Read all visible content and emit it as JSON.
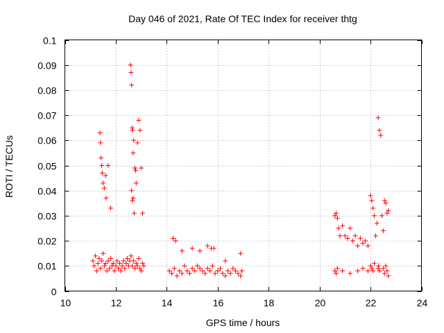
{
  "chart_data": {
    "type": "scatter",
    "title": "Day 046 of 2021, Rate Of TEC Index for receiver thtg",
    "xlabel": "GPS time / hours",
    "ylabel": "ROTI / TECUs",
    "xlim": [
      10,
      24
    ],
    "ylim": [
      0,
      0.1
    ],
    "xticks": [
      10,
      12,
      14,
      16,
      18,
      20,
      22,
      24
    ],
    "yticks": [
      0,
      0.01,
      0.02,
      0.03,
      0.04,
      0.05,
      0.06,
      0.07,
      0.08,
      0.09,
      0.1
    ],
    "grid": true,
    "marker": "+",
    "color": "#ff0000",
    "series": [
      {
        "name": "ROTI",
        "x": [
          11.1,
          11.15,
          11.2,
          11.25,
          11.3,
          11.35,
          11.4,
          11.45,
          11.5,
          11.55,
          11.6,
          11.65,
          11.7,
          11.75,
          11.8,
          11.85,
          11.9,
          11.95,
          12.0,
          12.05,
          12.1,
          12.15,
          12.2,
          12.25,
          12.3,
          12.35,
          12.4,
          12.45,
          12.5,
          12.55,
          12.6,
          12.65,
          12.7,
          12.75,
          12.8,
          12.85,
          12.9,
          12.95,
          13.0,
          13.05,
          13.1,
          11.38,
          11.4,
          11.42,
          11.45,
          11.47,
          11.5,
          11.55,
          11.6,
          11.62,
          11.7,
          11.8,
          12.58,
          12.6,
          12.62,
          12.64,
          12.66,
          12.68,
          12.7,
          12.75,
          12.78,
          12.8,
          12.85,
          12.9,
          12.95,
          13.0,
          13.05,
          12.62,
          12.65,
          12.68,
          12.72,
          14.1,
          14.2,
          14.3,
          14.4,
          14.5,
          14.6,
          14.7,
          14.8,
          14.9,
          15.0,
          15.1,
          15.2,
          15.3,
          15.4,
          15.5,
          15.6,
          15.7,
          15.8,
          15.9,
          16.0,
          16.1,
          16.2,
          16.3,
          16.4,
          16.5,
          16.6,
          16.7,
          16.8,
          16.9,
          16.95,
          14.25,
          14.35,
          14.6,
          15.0,
          15.3,
          15.6,
          15.75,
          15.85,
          16.3,
          16.9,
          20.6,
          20.65,
          20.7,
          20.75,
          20.8,
          20.9,
          21.0,
          21.1,
          21.2,
          21.3,
          21.4,
          21.5,
          21.6,
          21.7,
          21.8,
          21.9,
          22.0,
          22.05,
          22.1,
          22.15,
          22.2,
          22.25,
          22.3,
          22.35,
          22.4,
          22.45,
          22.5,
          22.55,
          22.6,
          22.65,
          22.7,
          20.6,
          20.65,
          20.7,
          20.9,
          21.2,
          21.5,
          21.7,
          21.9,
          22.0,
          22.05,
          22.1,
          22.15,
          22.3,
          22.32,
          22.35,
          22.5,
          22.55,
          22.6,
          22.65,
          22.7
        ],
        "y": [
          0.012,
          0.01,
          0.014,
          0.008,
          0.011,
          0.013,
          0.009,
          0.012,
          0.015,
          0.01,
          0.011,
          0.008,
          0.012,
          0.009,
          0.013,
          0.01,
          0.011,
          0.008,
          0.01,
          0.012,
          0.009,
          0.011,
          0.008,
          0.01,
          0.012,
          0.009,
          0.011,
          0.013,
          0.01,
          0.012,
          0.014,
          0.01,
          0.012,
          0.009,
          0.011,
          0.01,
          0.013,
          0.009,
          0.008,
          0.011,
          0.01,
          0.063,
          0.059,
          0.053,
          0.05,
          0.047,
          0.043,
          0.041,
          0.046,
          0.037,
          0.05,
          0.033,
          0.09,
          0.087,
          0.082,
          0.065,
          0.064,
          0.055,
          0.06,
          0.049,
          0.048,
          0.043,
          0.059,
          0.068,
          0.064,
          0.049,
          0.031,
          0.04,
          0.036,
          0.037,
          0.031,
          0.008,
          0.007,
          0.009,
          0.006,
          0.008,
          0.007,
          0.01,
          0.008,
          0.007,
          0.009,
          0.008,
          0.01,
          0.009,
          0.008,
          0.007,
          0.009,
          0.008,
          0.01,
          0.007,
          0.008,
          0.009,
          0.007,
          0.006,
          0.008,
          0.007,
          0.009,
          0.008,
          0.007,
          0.006,
          0.008,
          0.021,
          0.02,
          0.016,
          0.017,
          0.016,
          0.018,
          0.017,
          0.017,
          0.012,
          0.015,
          0.03,
          0.031,
          0.029,
          0.025,
          0.022,
          0.026,
          0.022,
          0.021,
          0.025,
          0.02,
          0.022,
          0.018,
          0.021,
          0.019,
          0.02,
          0.018,
          0.038,
          0.036,
          0.033,
          0.03,
          0.022,
          0.027,
          0.069,
          0.064,
          0.062,
          0.03,
          0.024,
          0.036,
          0.035,
          0.031,
          0.032,
          0.008,
          0.007,
          0.009,
          0.008,
          0.007,
          0.008,
          0.009,
          0.008,
          0.01,
          0.009,
          0.008,
          0.011,
          0.009,
          0.01,
          0.008,
          0.009,
          0.007,
          0.01,
          0.008,
          0.006
        ]
      }
    ]
  }
}
